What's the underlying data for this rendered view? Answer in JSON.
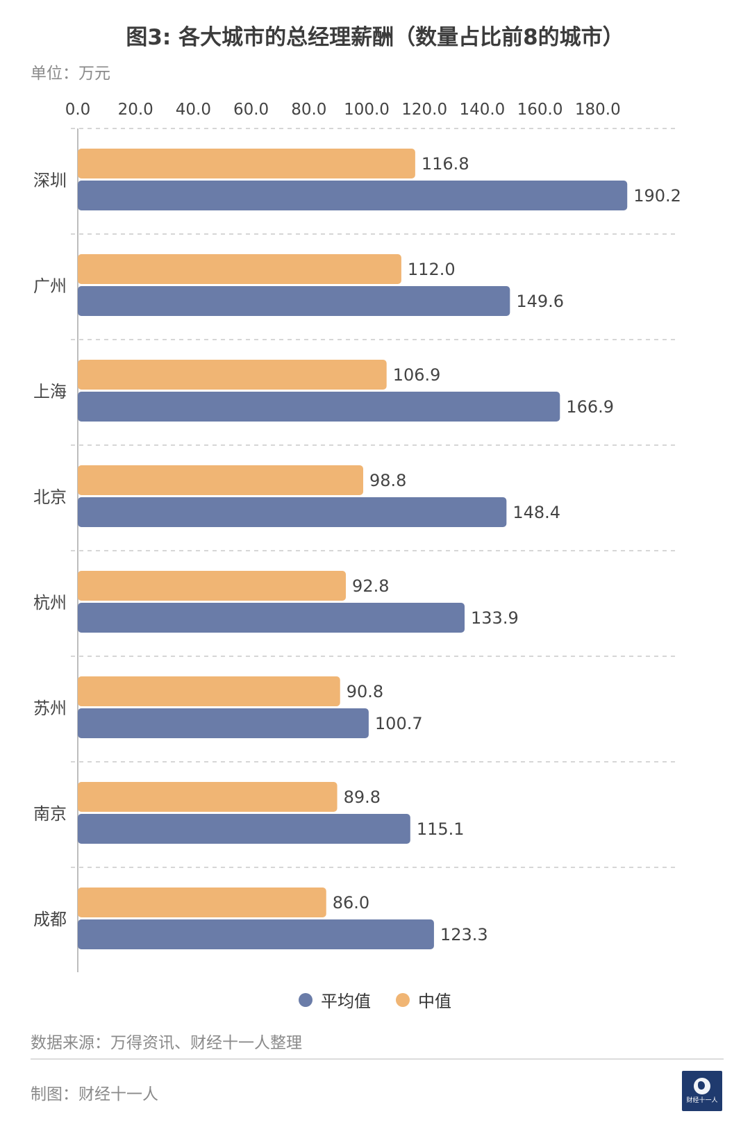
{
  "title": "图3: 各大城市的总经理薪酬（数量占比前8的城市）",
  "unit": "单位：万元",
  "source": "数据来源：万得资讯、财经十一人整理",
  "made_by": "制图：财经十一人",
  "logo_text": "财经十一人",
  "colors": {
    "avg": "#6a7ca8",
    "median": "#f0b574",
    "grid": "#c9c9c9",
    "axis": "#bdbdbd",
    "label": "#444444"
  },
  "chart_data": {
    "type": "bar",
    "orientation": "horizontal",
    "categories": [
      "深圳",
      "广州",
      "上海",
      "北京",
      "杭州",
      "苏州",
      "南京",
      "成都"
    ],
    "series": [
      {
        "name": "中值",
        "values": [
          116.8,
          112.0,
          106.9,
          98.8,
          92.8,
          90.8,
          89.8,
          86.0
        ]
      },
      {
        "name": "平均值",
        "values": [
          190.2,
          149.6,
          166.9,
          148.4,
          133.9,
          100.7,
          115.1,
          123.3
        ]
      }
    ],
    "tick_labels": [
      "0.0",
      "20.0",
      "40.0",
      "60.0",
      "80.0",
      "100.0",
      "120.0",
      "140.0",
      "160.0",
      "180.0"
    ],
    "xlim": [
      0,
      200
    ],
    "legend": [
      {
        "name": "平均值",
        "color": "#6a7ca8"
      },
      {
        "name": "中值",
        "color": "#f0b574"
      }
    ],
    "legend_position": "bottom",
    "grid": true,
    "tick_position": "top"
  }
}
